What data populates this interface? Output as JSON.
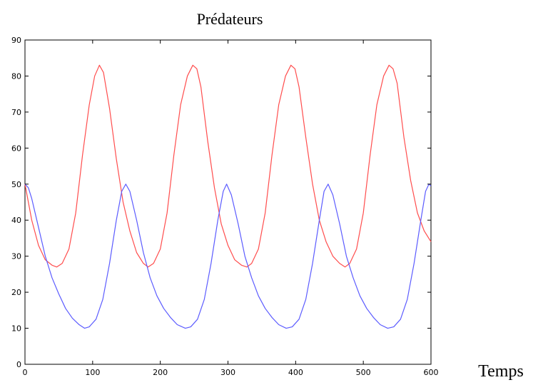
{
  "chart_data": {
    "type": "line",
    "title": "Prédateurs",
    "xlabel": "Temps",
    "ylabel": "",
    "xlim": [
      0,
      600
    ],
    "ylim": [
      0,
      90
    ],
    "xticks": [
      0,
      100,
      200,
      300,
      400,
      500,
      600
    ],
    "yticks": [
      0,
      10,
      20,
      30,
      40,
      50,
      60,
      70,
      80,
      90
    ],
    "grid": false,
    "series": [
      {
        "color": "#ff4d4d",
        "x": [
          0,
          10,
          20,
          30,
          40,
          47,
          55,
          65,
          75,
          85,
          95,
          103,
          110,
          116,
          125,
          135,
          145,
          155,
          165,
          175,
          182,
          190,
          200,
          210,
          220,
          230,
          240,
          248,
          254,
          260,
          270,
          280,
          290,
          300,
          310,
          320,
          328,
          335,
          345,
          355,
          365,
          375,
          385,
          393,
          399,
          405,
          415,
          425,
          435,
          445,
          455,
          465,
          473,
          480,
          490,
          500,
          510,
          520,
          530,
          538,
          544,
          550,
          560,
          570,
          580,
          590,
          600
        ],
        "y": [
          50,
          40,
          33,
          29,
          27.5,
          27,
          28,
          32,
          42,
          58,
          72,
          80,
          83,
          81,
          71,
          57,
          45,
          37,
          31,
          28,
          27,
          28,
          32,
          42,
          58,
          72,
          80,
          83,
          82,
          77,
          62,
          49,
          39,
          33,
          29,
          27.5,
          27,
          28,
          32,
          42,
          58,
          72,
          80,
          83,
          82,
          77,
          63,
          50,
          40,
          34,
          30,
          28,
          27,
          28,
          32,
          42,
          58,
          72,
          80,
          83,
          82,
          78,
          63,
          51,
          42,
          37,
          34
        ]
      },
      {
        "color": "#5c5cff",
        "x": [
          0,
          5,
          10,
          20,
          30,
          40,
          50,
          60,
          70,
          80,
          88,
          95,
          105,
          115,
          125,
          135,
          143,
          149,
          155,
          165,
          175,
          185,
          195,
          205,
          215,
          225,
          237,
          245,
          255,
          265,
          275,
          285,
          293,
          298,
          305,
          315,
          325,
          335,
          345,
          355,
          365,
          375,
          386,
          395,
          405,
          415,
          425,
          435,
          442,
          448,
          455,
          465,
          475,
          485,
          495,
          505,
          515,
          525,
          536,
          545,
          555,
          565,
          575,
          585,
          592,
          597,
          600
        ],
        "y": [
          50,
          49,
          46,
          38,
          30,
          24,
          19.5,
          15.5,
          12.8,
          11,
          10,
          10.4,
          12.5,
          18,
          28,
          40,
          48,
          50,
          48,
          40,
          31,
          24,
          19,
          15.5,
          13,
          11,
          10,
          10.4,
          12.5,
          18,
          28,
          40,
          48,
          50,
          47,
          39,
          30,
          24,
          19,
          15.5,
          13,
          11,
          10,
          10.4,
          12.5,
          18,
          28,
          40,
          48,
          50,
          47,
          39,
          30,
          24,
          19,
          15.5,
          13,
          11,
          10,
          10.4,
          12.5,
          18,
          28,
          40,
          48,
          50,
          49.5
        ]
      }
    ]
  }
}
